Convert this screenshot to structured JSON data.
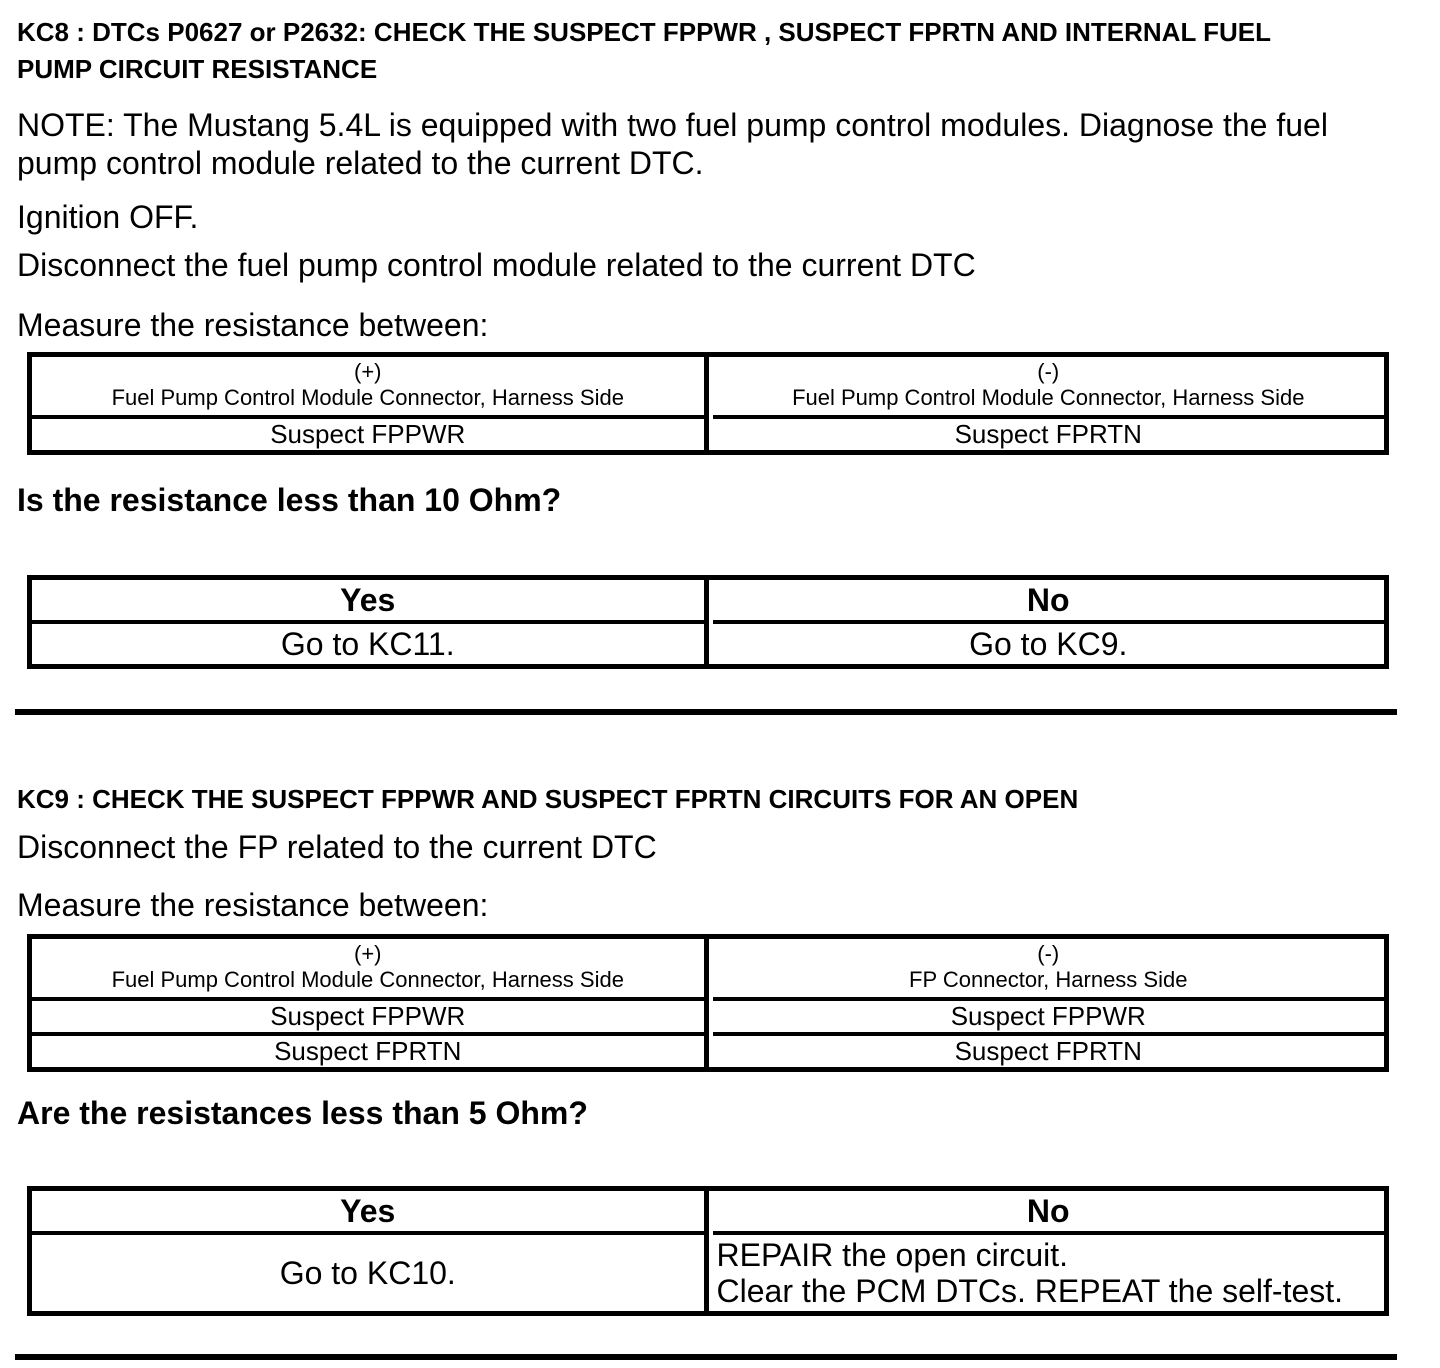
{
  "kc8": {
    "heading": "KC8 : DTCs P0627 or P2632: CHECK THE SUSPECT FPPWR , SUSPECT FPRTN AND INTERNAL FUEL\nPUMP CIRCUIT RESISTANCE",
    "note": "NOTE: The Mustang 5.4L is equipped with two fuel pump control modules. Diagnose the fuel\npump control module related to the current DTC.",
    "steps": [
      "Ignition OFF.",
      "Disconnect the fuel pump control module related to the current DTC",
      "Measure the resistance between:"
    ],
    "measure_table": {
      "positive": {
        "sign": "(+)",
        "label": "Fuel Pump Control Module Connector, Harness Side"
      },
      "negative": {
        "sign": "(-)",
        "label": "Fuel Pump Control Module Connector, Harness Side"
      },
      "rows": [
        {
          "positive": "Suspect FPPWR",
          "negative": "Suspect FPRTN"
        }
      ]
    },
    "question": "Is the resistance less than 10 Ohm?",
    "decision_table": {
      "yes_label": "Yes",
      "no_label": "No",
      "yes_action": "Go to KC11.",
      "no_action": "Go to KC9."
    }
  },
  "kc9": {
    "heading": "KC9 : CHECK THE SUSPECT FPPWR AND SUSPECT FPRTN CIRCUITS FOR AN OPEN",
    "steps": [
      "Disconnect the FP related to the current DTC",
      "Measure the resistance between:"
    ],
    "measure_table": {
      "positive": {
        "sign": "(+)",
        "label": "Fuel Pump Control Module Connector, Harness Side"
      },
      "negative": {
        "sign": "(-)",
        "label": "FP Connector, Harness Side"
      },
      "rows": [
        {
          "positive": "Suspect FPPWR",
          "negative": "Suspect FPPWR"
        },
        {
          "positive": "Suspect FPRTN",
          "negative": "Suspect FPRTN"
        }
      ]
    },
    "question": "Are the resistances less than 5 Ohm?",
    "decision_table": {
      "yes_label": "Yes",
      "no_label": "No",
      "yes_action": "Go to KC10.",
      "no_action": "REPAIR the open circuit.\nClear the PCM DTCs. REPEAT the self-test."
    }
  }
}
